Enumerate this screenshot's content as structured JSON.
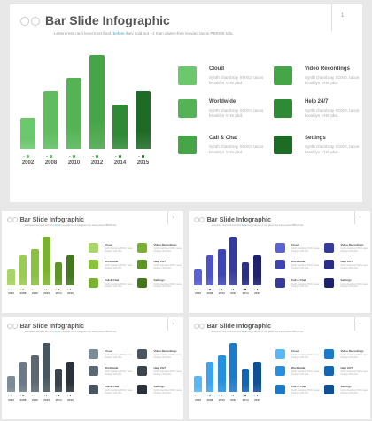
{
  "slide": {
    "title": "Bar Slide Infographic",
    "subtitle_before": "Letterpress next level trust fund, ",
    "subtitle_link": "before",
    "subtitle_after": " they sold out +1 man gluten-free leaving tacos PBRGB tofu.",
    "slide_number": "1"
  },
  "chart_data": {
    "type": "bar",
    "categories": [
      "2002",
      "2008",
      "2010",
      "2012",
      "2014",
      "2015"
    ],
    "values": [
      35,
      65,
      80,
      106,
      50,
      65
    ],
    "ylim": [
      0,
      110
    ]
  },
  "features": [
    {
      "title": "Cloud",
      "desc": "Synth chambray XOXO, tacos brooklyn VHS pbd."
    },
    {
      "title": "Video Recordings",
      "desc": "Synth chambray XOXO, tacos brooklyn VHS pbd."
    },
    {
      "title": "Worldwide",
      "desc": "Synth chambray XOXO, tacos brooklyn VHS pbd."
    },
    {
      "title": "Help 24/7",
      "desc": "Synth chambray XOXO, tacos brooklyn VHS pbd."
    },
    {
      "title": "Call & Chat",
      "desc": "Synth chambray XOXO, tacos brooklyn VHS pbd."
    },
    {
      "title": "Settings",
      "desc": "Synth chambray XOXO, tacos brooklyn VHS pbd."
    }
  ],
  "themes": [
    {
      "name": "green",
      "colors": [
        "#6cc86c",
        "#5fbd5f",
        "#54b354",
        "#46a546",
        "#2f8a36",
        "#1e6b26"
      ]
    },
    {
      "name": "lime",
      "colors": [
        "#a9d46a",
        "#9acb52",
        "#8ac23f",
        "#7bb132",
        "#5d9625",
        "#43781a"
      ]
    },
    {
      "name": "indigo",
      "colors": [
        "#5b62d6",
        "#4d52c6",
        "#3f44b5",
        "#353a9f",
        "#2a2e86",
        "#1e216b"
      ]
    },
    {
      "name": "slate",
      "colors": [
        "#7c8c96",
        "#6b7a84",
        "#5a6872",
        "#49565f",
        "#39444c",
        "#29323a"
      ]
    },
    {
      "name": "blue",
      "colors": [
        "#58b8f6",
        "#3aa4ef",
        "#2690e0",
        "#1a7acb",
        "#1566b2",
        "#0f4f94"
      ]
    }
  ]
}
